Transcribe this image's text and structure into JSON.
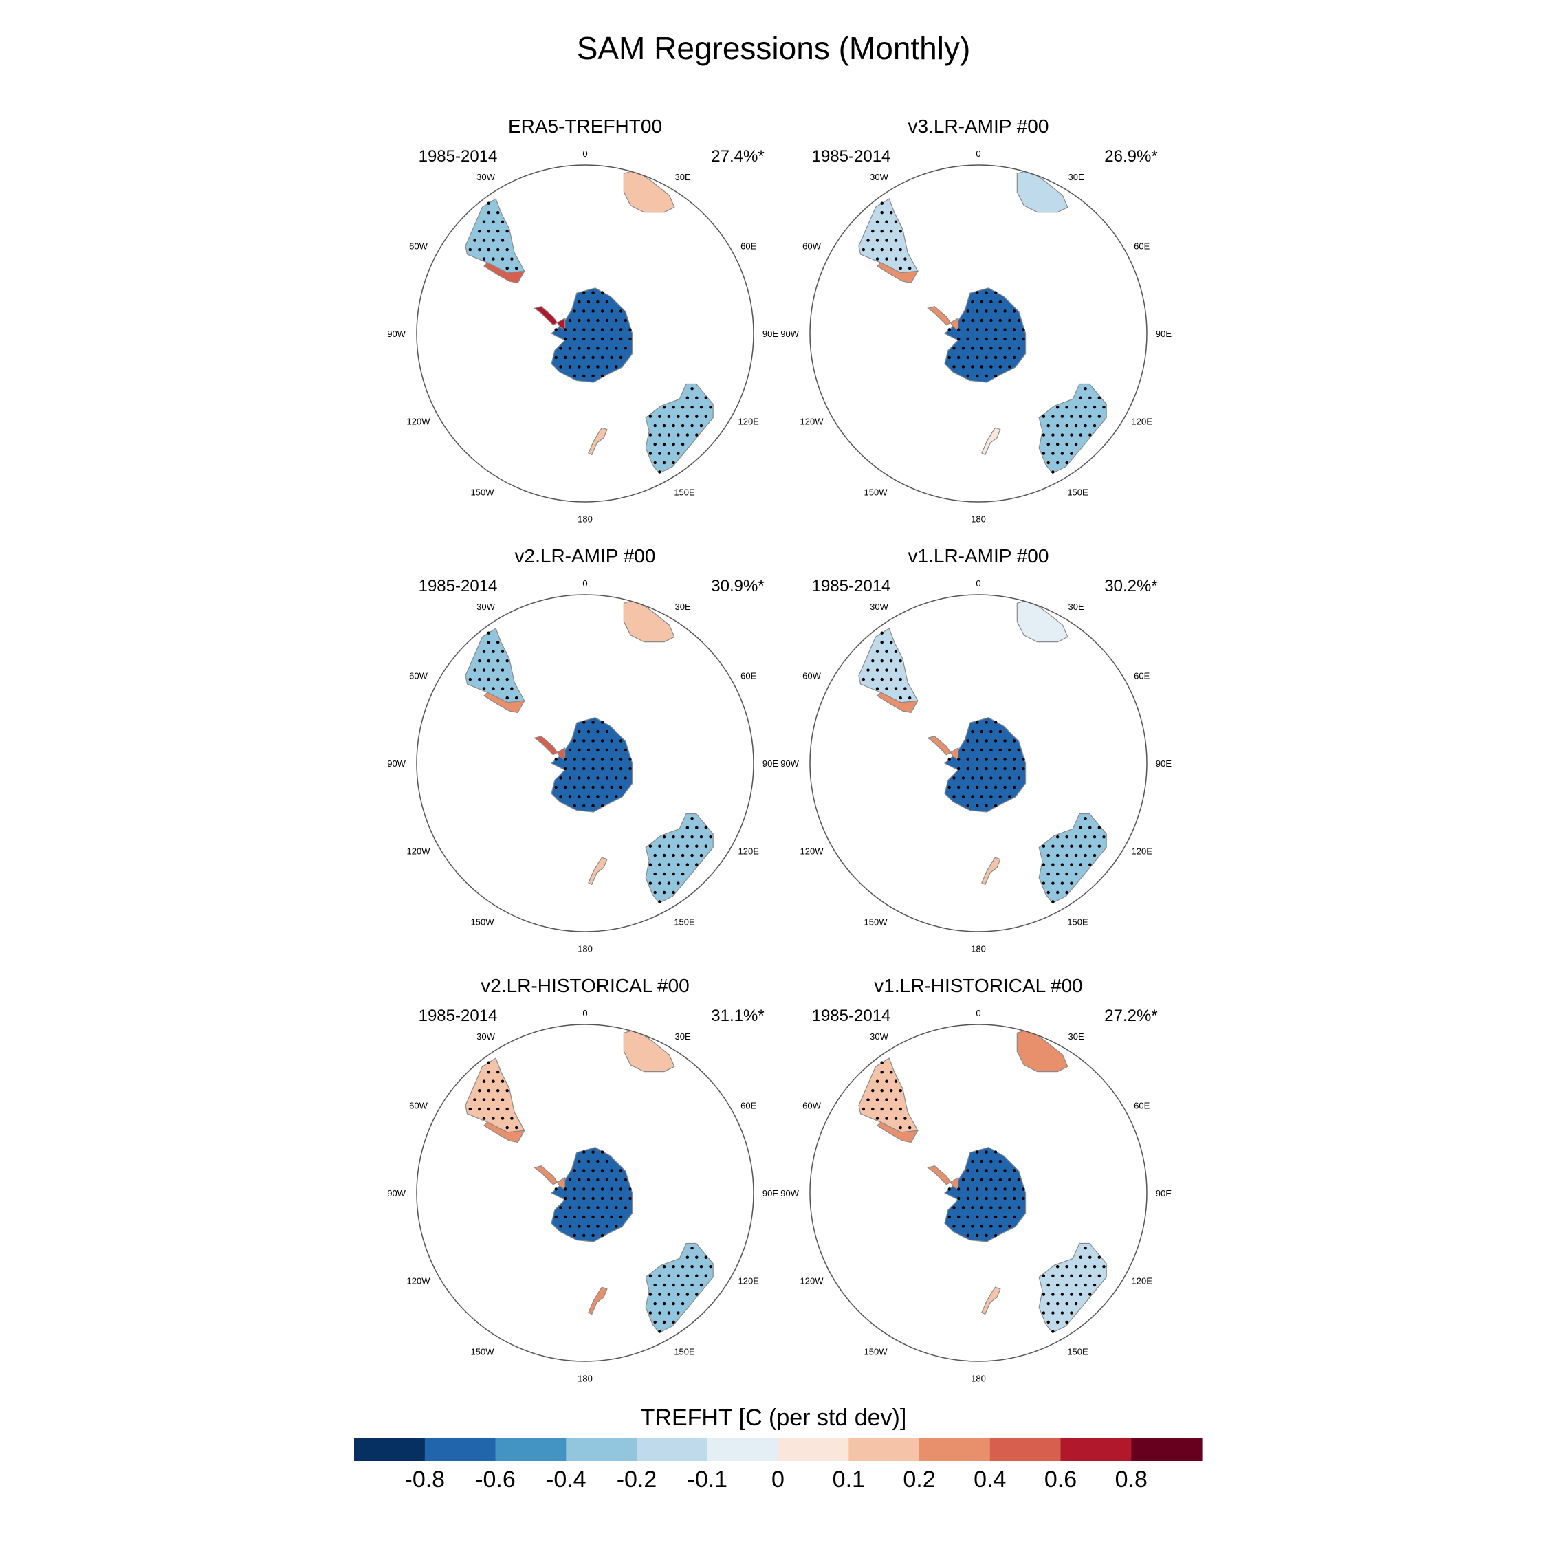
{
  "figure": {
    "title": "SAM Regressions (Monthly)"
  },
  "panels": [
    {
      "title": "ERA5-TREFHT00",
      "period": "1985-2014",
      "variance": "27.4%*",
      "regions": {
        "antarctica": -0.8,
        "antarctic_peninsula": 0.6,
        "south_america": -0.3,
        "patagonia": 0.4,
        "africa": 0.1,
        "australia": -0.4,
        "new_zealand": 0.15
      }
    },
    {
      "title": "v3.LR-AMIP  #00",
      "period": "1985-2014",
      "variance": "26.9%*",
      "regions": {
        "antarctica": -0.7,
        "antarctic_peninsula": 0.3,
        "south_america": -0.15,
        "patagonia": 0.25,
        "africa": -0.15,
        "australia": -0.3,
        "new_zealand": 0.05
      }
    },
    {
      "title": "v2.LR-AMIP  #00",
      "period": "1985-2014",
      "variance": "30.9%*",
      "regions": {
        "antarctica": -0.8,
        "antarctic_peninsula": 0.4,
        "south_america": -0.3,
        "patagonia": 0.3,
        "africa": 0.1,
        "australia": -0.3,
        "new_zealand": 0.15
      }
    },
    {
      "title": "v1.LR-AMIP  #00",
      "period": "1985-2014",
      "variance": "30.2%*",
      "regions": {
        "antarctica": -0.7,
        "antarctic_peninsula": 0.3,
        "south_america": -0.2,
        "patagonia": 0.3,
        "africa": -0.1,
        "australia": -0.3,
        "new_zealand": 0.1
      }
    },
    {
      "title": "v2.LR-HISTORICAL  #00",
      "period": "1985-2014",
      "variance": "31.1%*",
      "regions": {
        "antarctica": -0.7,
        "antarctic_peninsula": 0.3,
        "south_america": 0.1,
        "patagonia": 0.2,
        "africa": 0.1,
        "australia": -0.3,
        "new_zealand": 0.2
      }
    },
    {
      "title": "v1.LR-HISTORICAL  #00",
      "period": "1985-2014",
      "variance": "27.2%*",
      "regions": {
        "antarctica": -0.7,
        "antarctic_peninsula": 0.2,
        "south_america": 0.1,
        "patagonia": 0.3,
        "africa": 0.3,
        "australia": -0.2,
        "new_zealand": 0.1
      }
    }
  ],
  "lon_labels": [
    "0",
    "30E",
    "60E",
    "90E",
    "120E",
    "150E",
    "180",
    "150W",
    "120W",
    "90W",
    "60W",
    "30W"
  ],
  "colorbar": {
    "title": "TREFHT [C (per std dev)]",
    "tick_labels": [
      "-0.8",
      "-0.6",
      "-0.4",
      "-0.2",
      "-0.1",
      "0",
      "0.1",
      "0.2",
      "0.4",
      "0.6",
      "0.8"
    ],
    "colors": [
      "#053061",
      "#2166ac",
      "#4393c3",
      "#92c5de",
      "#bfdaea",
      "#e4eef5",
      "#fbe6dc",
      "#f4c3a8",
      "#e8906c",
      "#d6604d",
      "#b2182b",
      "#67001f"
    ]
  },
  "chart_data": {
    "type": "heatmap",
    "title": "SAM Regressions (Monthly)",
    "variable": "TREFHT [C (per std dev)]",
    "projection": "south polar stereographic",
    "levels": [
      -0.8,
      -0.6,
      -0.4,
      -0.2,
      -0.1,
      0,
      0.1,
      0.2,
      0.4,
      0.6,
      0.8
    ],
    "series": [
      {
        "name": "ERA5-TREFHT00",
        "variance_explained": "27.4%*"
      },
      {
        "name": "v3.LR-AMIP  #00",
        "variance_explained": "26.9%*"
      },
      {
        "name": "v2.LR-AMIP  #00",
        "variance_explained": "30.9%*"
      },
      {
        "name": "v1.LR-AMIP  #00",
        "variance_explained": "30.2%*"
      },
      {
        "name": "v2.LR-HISTORICAL  #00",
        "variance_explained": "31.1%*"
      },
      {
        "name": "v1.LR-HISTORICAL  #00",
        "variance_explained": "27.2%*"
      }
    ]
  }
}
